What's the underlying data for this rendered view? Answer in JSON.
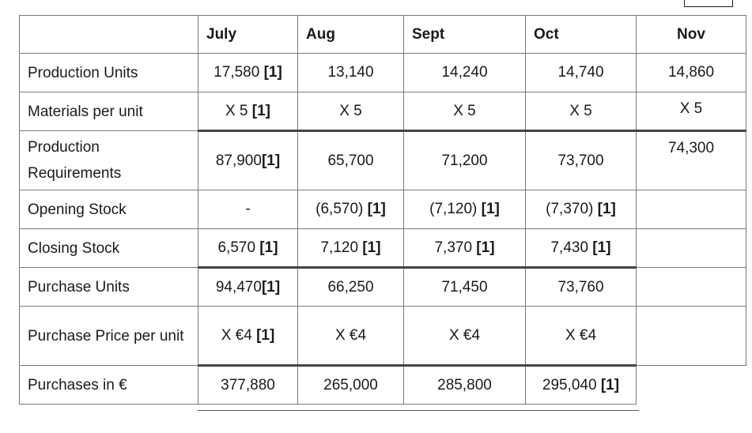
{
  "columns": [
    "",
    "July",
    "Aug",
    "Sept",
    "Oct",
    "Nov"
  ],
  "rows": [
    {
      "label": "Production Units",
      "cells": [
        {
          "v": "17,580 ",
          "m": "[1]"
        },
        {
          "v": "13,140"
        },
        {
          "v": "14,240"
        },
        {
          "v": "14,740"
        },
        {
          "v": "14,860"
        }
      ]
    },
    {
      "label": "Materials per unit",
      "cells": [
        {
          "v": "X 5  ",
          "m": "[1]"
        },
        {
          "v": "X 5"
        },
        {
          "v": "X 5"
        },
        {
          "v": "X 5"
        },
        {
          "v": "X 5"
        }
      ]
    },
    {
      "label": "Production Requirements",
      "cells": [
        {
          "v": "87,900",
          "m": "[1]"
        },
        {
          "v": "65,700"
        },
        {
          "v": "71,200"
        },
        {
          "v": "73,700"
        },
        {
          "v": "74,300"
        }
      ]
    },
    {
      "label": "Opening Stock",
      "cells": [
        {
          "v": "-"
        },
        {
          "v": "(6,570) ",
          "m": "[1]"
        },
        {
          "v": "(7,120) ",
          "m": "[1]"
        },
        {
          "v": "(7,370) ",
          "m": "[1]"
        },
        {
          "v": ""
        }
      ]
    },
    {
      "label": "Closing Stock",
      "cells": [
        {
          "v": "6,570  ",
          "m": "[1]"
        },
        {
          "v": "7,120  ",
          "m": "[1]"
        },
        {
          "v": "7,370  ",
          "m": "[1]"
        },
        {
          "v": "7,430 ",
          "m": "[1]"
        },
        {
          "v": ""
        }
      ]
    },
    {
      "label": "Purchase Units",
      "cells": [
        {
          "v": "94,470",
          "m": "[1]"
        },
        {
          "v": "66,250"
        },
        {
          "v": "71,450"
        },
        {
          "v": "73,760"
        },
        {
          "v": ""
        }
      ]
    },
    {
      "label": "Purchase Price per unit",
      "cells": [
        {
          "v": "X  €4 ",
          "m": "[1]"
        },
        {
          "v": "X  €4"
        },
        {
          "v": "X  €4"
        },
        {
          "v": "X  €4"
        },
        {
          "v": ""
        }
      ]
    },
    {
      "label": "Purchases in €",
      "cells": [
        {
          "v": "377,880"
        },
        {
          "v": "265,000"
        },
        {
          "v": "285,800"
        },
        {
          "v": "295,040 ",
          "m": "[1]"
        },
        {
          "v": ""
        }
      ]
    }
  ]
}
